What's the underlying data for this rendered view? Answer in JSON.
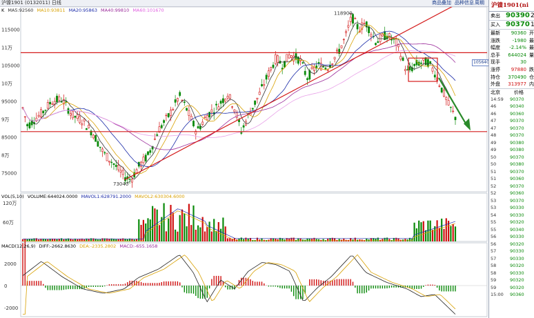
{
  "top": {
    "title": "沪镍1901 (0132011) 日线",
    "links": [
      "商品叠加",
      "品种信息",
      "周期"
    ]
  },
  "main_indicators": {
    "label": "K",
    "ma5": "MA5:92560",
    "ma10": "MA10:93811",
    "ma20": "MA20:95863",
    "ma40": "MA40:99810",
    "ma60": "MA60:101670"
  },
  "price_axis": [
    "115000",
    "11万",
    "105000",
    "10万",
    "95000",
    "9万",
    "85000",
    "8万",
    "75000"
  ],
  "annotations": {
    "high": "118900",
    "low": "73040",
    "right_tag": "105640"
  },
  "volume_indicators": {
    "label": "VOL(5,10)",
    "volume": "VOLUME:644024.0000",
    "mavol1": "MAVOL1:628791.2000",
    "mavol2": "MAVOL2:630304.6000"
  },
  "volume_axis": [
    "120万",
    "60万"
  ],
  "macd_indicators": {
    "label": "MACD(12,26,9)",
    "diff": "DIFF:-2662.8630",
    "dea": "DEA:-2335.2802",
    "macd": "MACD:-655.1658"
  },
  "macd_axis": [
    "2000",
    "0",
    "-2000"
  ],
  "panel": {
    "title": "沪镍1901(ni",
    "sell": {
      "label": "卖出",
      "value": "90390",
      "ext": "2"
    },
    "buy": {
      "label": "买入",
      "value": "90370",
      "ext": "1"
    },
    "stats": [
      {
        "k": "最新",
        "v": "90360",
        "x": "开",
        "color": "green"
      },
      {
        "k": "涨跌",
        "v": "-1980",
        "x": "最",
        "color": "green"
      },
      {
        "k": "幅度",
        "v": "-2.14%",
        "x": "最",
        "color": "green"
      },
      {
        "k": "总手",
        "v": "644024",
        "x": "量",
        "color": "green"
      },
      {
        "k": "现手",
        "v": "30",
        "x": "",
        "color": "green"
      },
      {
        "k": "涨停",
        "v": "97880",
        "x": "跌",
        "color": "red"
      },
      {
        "k": "持仓",
        "v": "370490",
        "x": "仓",
        "color": "green"
      },
      {
        "k": "外盘",
        "v": "313977",
        "x": "内",
        "color": "red"
      }
    ],
    "ticks_header": {
      "a": "北京",
      "b": "价格"
    },
    "ticks": [
      {
        "t": "14:59",
        "p": "90370"
      },
      {
        "t": "46",
        "p": "90340"
      },
      {
        "t": "46",
        "p": "90360"
      },
      {
        "t": "47",
        "p": "90370"
      },
      {
        "t": "47",
        "p": "90370"
      },
      {
        "t": "48",
        "p": "90370"
      },
      {
        "t": "49",
        "p": "90380"
      },
      {
        "t": "49",
        "p": "90380"
      },
      {
        "t": "50",
        "p": "90370"
      },
      {
        "t": "50",
        "p": "90380"
      },
      {
        "t": "51",
        "p": "90370"
      },
      {
        "t": "51",
        "p": "90360"
      },
      {
        "t": "52",
        "p": "90370"
      },
      {
        "t": "52",
        "p": "90360"
      },
      {
        "t": "53",
        "p": "90370"
      },
      {
        "t": "53",
        "p": "90330"
      },
      {
        "t": "54",
        "p": "90330"
      },
      {
        "t": "55",
        "p": "90320"
      },
      {
        "t": "55",
        "p": "90340"
      },
      {
        "t": "56",
        "p": "90330"
      },
      {
        "t": "56",
        "p": "90320"
      },
      {
        "t": "57",
        "p": "90330"
      },
      {
        "t": "57",
        "p": "90330"
      },
      {
        "t": "58",
        "p": "90320"
      },
      {
        "t": "58",
        "p": "90330"
      },
      {
        "t": "59",
        "p": "90320"
      },
      {
        "t": "59",
        "p": "90320"
      },
      {
        "t": "15:00",
        "p": "90360"
      }
    ]
  },
  "colors": {
    "up": "#d01010",
    "down": "#0a8a0a",
    "trend": "#d41c1c",
    "arrow": "#2a8a2a"
  }
}
